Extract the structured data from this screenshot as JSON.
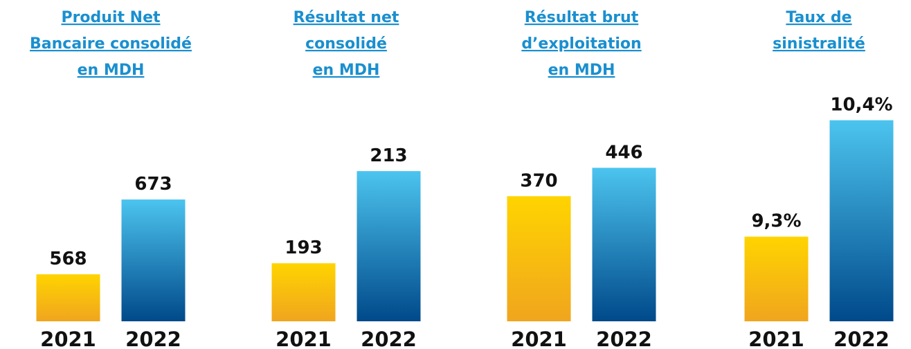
{
  "chart_data": [
    {
      "type": "bar",
      "title": [
        "Produit Net",
        "Bancaire consolidé",
        "en MDH"
      ],
      "categories": [
        "2021",
        "2022"
      ],
      "values": [
        568,
        673
      ],
      "colors": [
        [
          "#ffd400",
          "#f0a51e"
        ],
        [
          "#4cc4ef",
          "#00498a"
        ]
      ],
      "ylim": [
        502,
        817
      ]
    },
    {
      "type": "bar",
      "title": [
        "Résultat net",
        "consolidé",
        "en MDH"
      ],
      "categories": [
        "2021",
        "2022"
      ],
      "values": [
        193,
        213
      ],
      "colors": [
        [
          "#ffd400",
          "#f0a51e"
        ],
        [
          "#4cc4ef",
          "#00498a"
        ]
      ],
      "ylim": [
        180.4,
        229.1
      ]
    },
    {
      "type": "bar",
      "title": [
        "Résultat brut",
        "d’exploitation",
        "en MDH"
      ],
      "categories": [
        "2021",
        "2022"
      ],
      "values": [
        370,
        446
      ],
      "colors": [
        [
          "#ffd400",
          "#f0a51e"
        ],
        [
          "#4cc4ef",
          "#00498a"
        ]
      ],
      "ylim": [
        34.5,
        636
      ]
    },
    {
      "type": "bar",
      "title": [
        "Taux de",
        "sinistralité"
      ],
      "categories": [
        "2021",
        "2022"
      ],
      "values": [
        9.3,
        10.4
      ],
      "value_labels": [
        "9,3%",
        "10,4%"
      ],
      "colors": [
        [
          "#ffd400",
          "#f0a51e"
        ],
        [
          "#4cc4ef",
          "#00498a"
        ]
      ],
      "ylim": [
        8.5,
        10.62
      ]
    }
  ]
}
